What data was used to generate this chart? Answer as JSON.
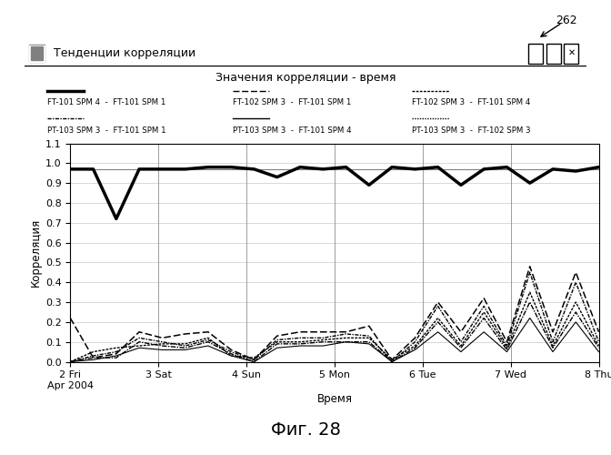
{
  "title_bar": "Тенденции корреляции",
  "chart_title": "Значения корреляции - время",
  "ylabel": "Корреляция",
  "xlabel": "Время",
  "ylim": [
    0.0,
    1.1
  ],
  "yticks": [
    0.0,
    0.1,
    0.2,
    0.3,
    0.4,
    0.5,
    0.6,
    0.7,
    0.8,
    0.9,
    1.0,
    1.1
  ],
  "xtick_labels": [
    "2 Fri\nApr 2004",
    "3 Sat",
    "4 Sun",
    "5 Mon",
    "6 Tue",
    "7 Wed",
    "8 Thu"
  ],
  "legend_row1": [
    "FT-101 SPM 4  -  FT-101 SPM 1",
    "FT-102 SPM 3  -  FT-101 SPM 1",
    "FT-102 SPM 3  -  FT-101 SPM 4"
  ],
  "legend_row2": [
    "PT-103 SPM 3  -  FT-101 SPM 1",
    "PT-103 SPM 3  -  FT-101 SPM 4",
    "PT-103 SPM 3  -  FT-102 SPM 3"
  ],
  "fig_label": "Фиг. 28",
  "annotation": "262",
  "series": {
    "solid_thick": [
      0.97,
      0.97,
      0.72,
      0.97,
      0.97,
      0.97,
      0.98,
      0.98,
      0.97,
      0.93,
      0.98,
      0.97,
      0.98,
      0.89,
      0.98,
      0.97,
      0.98,
      0.89,
      0.97,
      0.98,
      0.9,
      0.97,
      0.96,
      0.98
    ],
    "solid_thin1": [
      0.97,
      0.97,
      0.97,
      0.97,
      0.97,
      0.97,
      0.97,
      0.97,
      0.97,
      0.97,
      0.97,
      0.97,
      0.97,
      0.97,
      0.97,
      0.97,
      0.97,
      0.97,
      0.97,
      0.97,
      0.97,
      0.97,
      0.97,
      0.97
    ],
    "dash1": [
      0.22,
      0.02,
      0.04,
      0.15,
      0.12,
      0.14,
      0.15,
      0.06,
      0.01,
      0.13,
      0.15,
      0.15,
      0.15,
      0.18,
      0.01,
      0.12,
      0.3,
      0.15,
      0.32,
      0.1,
      0.48,
      0.15,
      0.45,
      0.15
    ],
    "dash2": [
      0.0,
      0.03,
      0.05,
      0.12,
      0.1,
      0.08,
      0.11,
      0.05,
      0.01,
      0.11,
      0.12,
      0.12,
      0.14,
      0.13,
      0.0,
      0.1,
      0.28,
      0.1,
      0.28,
      0.08,
      0.45,
      0.1,
      0.4,
      0.1
    ],
    "dash3": [
      0.0,
      0.05,
      0.07,
      0.08,
      0.09,
      0.09,
      0.12,
      0.03,
      0.02,
      0.1,
      0.1,
      0.11,
      0.12,
      0.12,
      0.01,
      0.08,
      0.22,
      0.08,
      0.25,
      0.07,
      0.35,
      0.08,
      0.3,
      0.08
    ],
    "dash4": [
      0.0,
      0.02,
      0.02,
      0.1,
      0.08,
      0.07,
      0.1,
      0.04,
      0.0,
      0.09,
      0.09,
      0.1,
      0.1,
      0.1,
      0.0,
      0.07,
      0.2,
      0.07,
      0.22,
      0.06,
      0.3,
      0.07,
      0.25,
      0.07
    ],
    "solid_thin2": [
      0.0,
      0.01,
      0.03,
      0.07,
      0.06,
      0.06,
      0.08,
      0.03,
      0.0,
      0.07,
      0.08,
      0.08,
      0.1,
      0.09,
      0.0,
      0.06,
      0.15,
      0.05,
      0.15,
      0.05,
      0.22,
      0.05,
      0.2,
      0.05
    ]
  }
}
